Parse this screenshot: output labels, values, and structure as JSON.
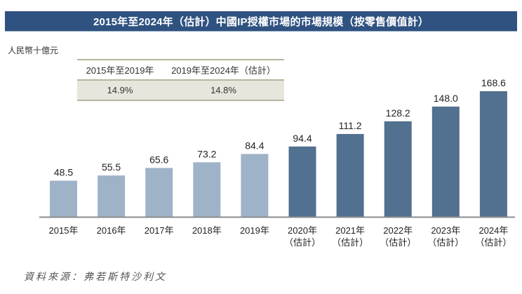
{
  "title": "2015年至2024年（估計）中國IP授權市場的市場規模（按零售價值計）",
  "unit_label": "人民幣十億元",
  "cagr_table": {
    "headers": [
      "2015年至2019年",
      "2019年至2024年（估計）"
    ],
    "values": [
      "14.9%",
      "14.8%"
    ]
  },
  "source": "資料來源：弗若斯特沙利文",
  "colors": {
    "title_bg": "#2f5280",
    "historical_bar": "#9fb3c8",
    "forecast_bar": "#52708f",
    "baseline": "#8c8c8c",
    "table_fill": "#e7e6dd",
    "table_rule": "#b9b59d"
  },
  "chart_data": {
    "type": "bar",
    "title": "2015年至2024年（估計）中國IP授權市場的市場規模（按零售價值計）",
    "ylabel": "人民幣十億元",
    "xlabel": "",
    "categories": [
      "2015年",
      "2016年",
      "2017年",
      "2018年",
      "2019年",
      "2020年",
      "2021年",
      "2022年",
      "2023年",
      "2024年"
    ],
    "category_sublabels": [
      "",
      "",
      "",
      "",
      "",
      "（估計）",
      "（估計）",
      "（估計）",
      "（估計）",
      "（估計）"
    ],
    "values": [
      48.5,
      55.5,
      65.6,
      73.2,
      84.4,
      94.4,
      111.2,
      128.2,
      148.0,
      168.6
    ],
    "value_labels": [
      "48.5",
      "55.5",
      "65.6",
      "73.2",
      "84.4",
      "94.4",
      "111.2",
      "128.2",
      "148.0",
      "168.6"
    ],
    "series_type": [
      "historical",
      "historical",
      "historical",
      "historical",
      "historical",
      "forecast",
      "forecast",
      "forecast",
      "forecast",
      "forecast"
    ],
    "ylim": [
      0,
      170
    ],
    "grid": false,
    "legend": "none"
  }
}
